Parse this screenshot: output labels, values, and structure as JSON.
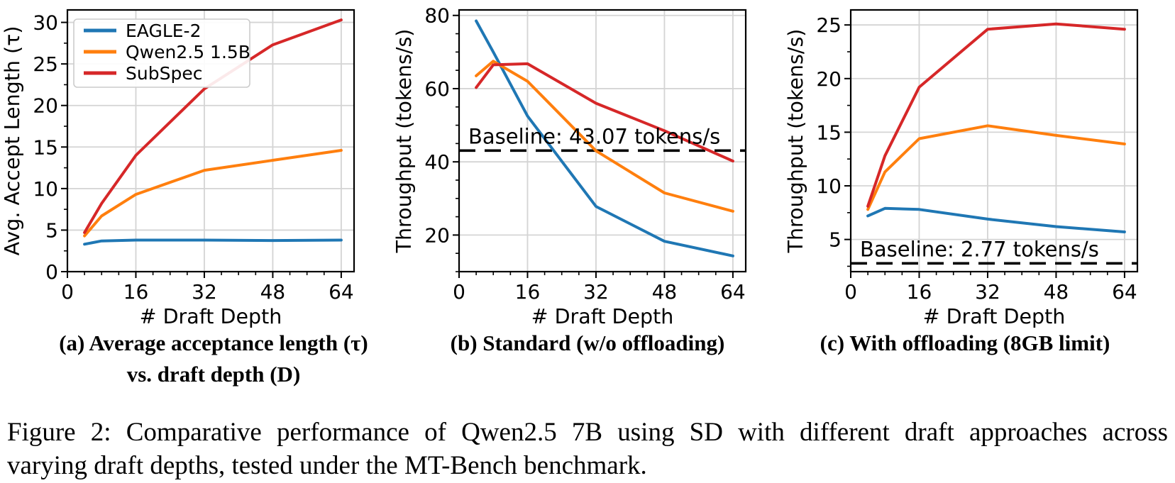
{
  "figure": {
    "caption_lines": [
      "Figure 2: Comparative performance of Qwen2.5 7B using SD with different draft approaches across",
      "varying draft depths, tested under the MT-Bench benchmark."
    ]
  },
  "panels": [
    {
      "caption_lines": [
        "(a) Average acceptance length (τ)",
        "vs. draft depth (D)"
      ]
    },
    {
      "caption_lines": [
        "(b) Standard (w/o offloading)"
      ]
    },
    {
      "caption_lines": [
        "(c) With offloading (8GB limit)"
      ]
    }
  ],
  "colors": {
    "eagle2": "#1f77b4",
    "qwen": "#ff7f0e",
    "subspec": "#d62728",
    "baseline": "#000000",
    "grid": "#d4d4d4",
    "text": "#000000"
  },
  "chart_data": [
    {
      "type": "line",
      "title": "(a) Average acceptance length (τ) vs. draft depth (D)",
      "xlabel": "# Draft Depth",
      "ylabel": "Avg. Accept Length (τ)",
      "x": [
        4,
        8,
        16,
        32,
        48,
        64
      ],
      "xlim": [
        0,
        67
      ],
      "ylim": [
        0,
        31.5
      ],
      "xticks": [
        0,
        16,
        32,
        48,
        64
      ],
      "yticks": [
        0,
        5,
        10,
        15,
        20,
        25,
        30
      ],
      "xminor": 4,
      "yminor": 2.5,
      "grid": true,
      "legend": {
        "position": "upper-left",
        "labels": [
          "EAGLE-2",
          "Qwen2.5 1.5B",
          "SubSpec"
        ]
      },
      "series": [
        {
          "name": "EAGLE-2",
          "color": "#1f77b4",
          "values": [
            3.3,
            3.7,
            3.8,
            3.8,
            3.75,
            3.8
          ]
        },
        {
          "name": "Qwen2.5 1.5B",
          "color": "#ff7f0e",
          "values": [
            4.3,
            6.7,
            9.3,
            12.2,
            13.4,
            14.6
          ]
        },
        {
          "name": "SubSpec",
          "color": "#d62728",
          "values": [
            4.7,
            8.2,
            14.0,
            22.0,
            27.3,
            30.3
          ]
        }
      ]
    },
    {
      "type": "line",
      "title": "(b) Standard (w/o offloading)",
      "xlabel": "# Draft Depth",
      "ylabel": "Throughput (tokens/s)",
      "x": [
        4,
        8,
        16,
        32,
        48,
        64
      ],
      "xlim": [
        0,
        67
      ],
      "ylim": [
        10,
        81.5
      ],
      "xticks": [
        0,
        16,
        32,
        48,
        64
      ],
      "yticks": [
        20,
        40,
        60,
        80
      ],
      "xminor": 4,
      "yminor": 5,
      "grid": true,
      "baseline": {
        "value": 43.07,
        "label": "Baseline: 43.07 tokens/s"
      },
      "series": [
        {
          "name": "EAGLE-2",
          "color": "#1f77b4",
          "values": [
            78.5,
            70.0,
            52.5,
            27.8,
            18.3,
            14.3
          ]
        },
        {
          "name": "Qwen2.5 1.5B",
          "color": "#ff7f0e",
          "values": [
            63.5,
            67.5,
            62.0,
            43.0,
            31.5,
            26.5
          ]
        },
        {
          "name": "SubSpec",
          "color": "#d62728",
          "values": [
            60.3,
            66.5,
            66.8,
            56.0,
            48.5,
            40.2
          ]
        }
      ]
    },
    {
      "type": "line",
      "title": "(c) With offloading (8GB limit)",
      "xlabel": "# Draft Depth",
      "ylabel": "Throughput (tokens/s)",
      "x": [
        4,
        8,
        16,
        32,
        48,
        64
      ],
      "xlim": [
        0,
        67
      ],
      "ylim": [
        2,
        26.4
      ],
      "xticks": [
        0,
        16,
        32,
        48,
        64
      ],
      "yticks": [
        5,
        10,
        15,
        20,
        25
      ],
      "xminor": 4,
      "yminor": 2.5,
      "grid": true,
      "baseline": {
        "value": 2.77,
        "label": "Baseline: 2.77 tokens/s"
      },
      "series": [
        {
          "name": "EAGLE-2",
          "color": "#1f77b4",
          "values": [
            7.2,
            7.9,
            7.8,
            6.9,
            6.2,
            5.7
          ]
        },
        {
          "name": "Qwen2.5 1.5B",
          "color": "#ff7f0e",
          "values": [
            7.8,
            11.3,
            14.4,
            15.6,
            14.7,
            13.9
          ]
        },
        {
          "name": "SubSpec",
          "color": "#d62728",
          "values": [
            8.1,
            12.8,
            19.2,
            24.6,
            25.1,
            24.6
          ]
        }
      ]
    }
  ]
}
